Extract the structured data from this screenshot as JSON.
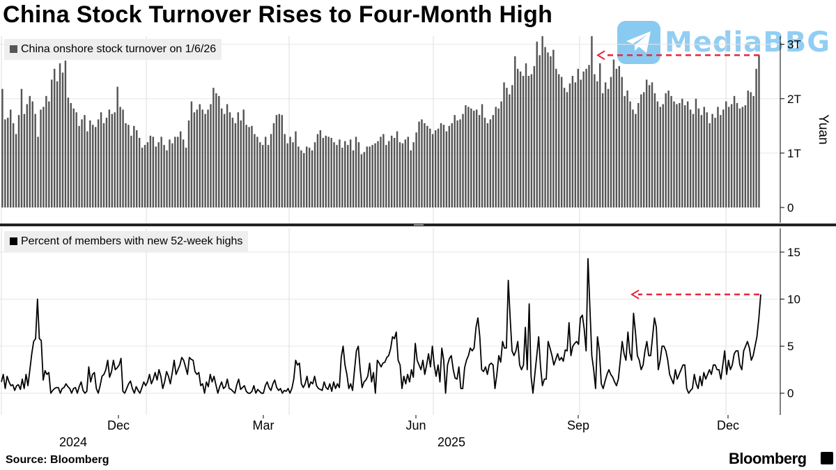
{
  "title": "China Stock Turnover Rises to Four-Month High",
  "watermark": {
    "text": "MediaBBG",
    "icon": "telegram-icon",
    "color": "#2aa0e6"
  },
  "source": "Source: Bloomberg",
  "brand": "Bloomberg",
  "x_axis": {
    "months": [
      "Dec",
      "Mar",
      "Jun",
      "Sep",
      "Dec"
    ],
    "years": [
      "2024",
      "2025"
    ]
  },
  "chart_data": [
    {
      "type": "bar",
      "legend": "China onshore stock turnover on 1/6/26",
      "ylabel": "Yuan",
      "ylim": [
        0,
        3.2
      ],
      "yticks": [
        0,
        1,
        2,
        3
      ],
      "ytick_labels": [
        "0",
        "1T",
        "2T",
        "3T"
      ],
      "bar_color": "#555555",
      "values": [
        2.18,
        1.62,
        1.65,
        1.8,
        1.55,
        1.35,
        1.7,
        2.18,
        1.72,
        1.9,
        2.05,
        1.95,
        1.72,
        1.3,
        1.8,
        1.85,
        2.05,
        1.95,
        2.35,
        2.55,
        2.32,
        2.65,
        2.48,
        2.7,
        2.02,
        1.92,
        1.82,
        1.75,
        1.5,
        1.62,
        1.7,
        1.4,
        1.6,
        1.52,
        1.48,
        1.62,
        1.75,
        1.55,
        1.65,
        1.8,
        1.72,
        1.75,
        2.22,
        1.85,
        1.8,
        1.55,
        1.52,
        1.32,
        1.5,
        1.42,
        1.28,
        1.1,
        1.15,
        1.2,
        1.32,
        1.3,
        1.12,
        1.2,
        1.3,
        1.15,
        1.05,
        1.25,
        1.18,
        1.3,
        1.3,
        1.4,
        1.25,
        1.1,
        1.6,
        1.95,
        1.75,
        1.8,
        1.9,
        1.8,
        1.72,
        1.8,
        1.9,
        2.2,
        2.1,
        2.05,
        1.82,
        1.72,
        1.9,
        1.75,
        1.65,
        1.55,
        1.75,
        1.6,
        1.8,
        1.52,
        1.48,
        1.5,
        1.35,
        1.3,
        1.2,
        1.15,
        1.3,
        1.15,
        1.35,
        1.55,
        1.7,
        1.72,
        1.7,
        1.35,
        1.18,
        1.3,
        1.2,
        1.4,
        1.12,
        1.05,
        1.0,
        1.12,
        1.1,
        1.05,
        1.2,
        1.35,
        1.42,
        1.28,
        1.32,
        1.3,
        1.28,
        1.2,
        1.15,
        1.25,
        1.1,
        1.22,
        1.15,
        1.25,
        1.05,
        1.3,
        1.2,
        0.98,
        1.02,
        1.12,
        1.12,
        1.15,
        1.18,
        1.22,
        1.3,
        1.35,
        1.15,
        1.22,
        1.32,
        1.28,
        1.4,
        1.2,
        1.18,
        1.25,
        1.3,
        1.05,
        1.2,
        1.38,
        1.58,
        1.62,
        1.55,
        1.5,
        1.45,
        1.35,
        1.42,
        1.45,
        1.55,
        1.52,
        1.4,
        1.5,
        1.55,
        1.7,
        1.6,
        1.62,
        1.72,
        1.88,
        1.85,
        1.82,
        1.78,
        1.8,
        1.7,
        1.9,
        1.65,
        1.55,
        1.62,
        1.7,
        1.85,
        1.82,
        1.95,
        2.3,
        2.2,
        2.08,
        2.25,
        2.78,
        2.55,
        2.5,
        2.42,
        2.65,
        2.42,
        2.45,
        2.6,
        3.05,
        2.8,
        3.15,
        2.95,
        2.85,
        2.78,
        2.9,
        2.55,
        2.45,
        2.4,
        2.2,
        2.12,
        2.28,
        2.42,
        2.3,
        2.55,
        2.35,
        2.5,
        2.55,
        2.62,
        3.15,
        2.45,
        2.32,
        2.65,
        2.1,
        2.3,
        2.18,
        2.4,
        2.72,
        2.55,
        2.6,
        2.4,
        2.05,
        2.15,
        1.95,
        1.8,
        1.72,
        1.92,
        2.08,
        2.12,
        2.35,
        2.25,
        2.3,
        2.1,
        1.95,
        1.85,
        1.9,
        2.1,
        2.15,
        2.05,
        1.95,
        1.9,
        1.92,
        2.0,
        1.88,
        1.95,
        1.8,
        1.72,
        2.0,
        1.82,
        1.7,
        1.85,
        1.75,
        1.55,
        1.72,
        1.65,
        1.85,
        1.7,
        1.8,
        1.95,
        1.85,
        1.9,
        2.05,
        1.92,
        1.82,
        1.85,
        1.88,
        2.15,
        2.12,
        2.05,
        2.55,
        2.8
      ],
      "annotation": {
        "from_value": 2.8,
        "style": "dashed-arrow",
        "color": "#e8253a"
      }
    },
    {
      "type": "line",
      "legend": "Percent of members with new 52-week highs",
      "ylim": [
        -1.5,
        17
      ],
      "yticks": [
        0,
        5,
        10,
        15
      ],
      "ytick_labels": [
        "0",
        "5",
        "10",
        "15"
      ],
      "line_color": "#000000",
      "values": [
        1.2,
        2.0,
        0.5,
        1.8,
        1.2,
        0.8,
        0.9,
        0.3,
        0.8,
        0.9,
        0.4,
        1.5,
        0.5,
        2.0,
        0.8,
        2.5,
        4.2,
        5.5,
        5.8,
        10.0,
        5.8,
        5.6,
        1.4,
        2.4,
        2.0,
        2.2,
        0.0,
        0.3,
        0.5,
        0.6,
        0.6,
        0.0,
        0.5,
        0.6,
        1.0,
        0.7,
        0.5,
        0.0,
        0.5,
        0.6,
        0.0,
        0.7,
        1.2,
        0.3,
        0.0,
        0.2,
        2.8,
        1.2,
        2.0,
        2.2,
        0.5,
        0.0,
        0.8,
        1.8,
        2.0,
        2.5,
        3.5,
        1.7,
        2.3,
        3.5,
        2.5,
        2.7,
        3.0,
        3.7,
        0.2,
        0.0,
        0.5,
        1.0,
        1.3,
        0.5,
        0.0,
        0.7,
        0.3,
        0.0,
        0.6,
        1.2,
        0.8,
        1.2,
        2.0,
        1.0,
        1.5,
        2.2,
        1.4,
        2.5,
        1.8,
        0.5,
        1.2,
        2.3,
        1.8,
        1.0,
        2.2,
        3.5,
        2.0,
        2.5,
        3.0,
        3.8,
        3.5,
        2.8,
        2.0,
        3.8,
        3.6,
        3.5,
        2.3,
        2.0,
        2.2,
        0.8,
        1.0,
        0.0,
        1.2,
        0.7,
        2.0,
        1.2,
        1.8,
        0.9,
        0.0,
        0.7,
        1.2,
        0.5,
        0.7,
        1.5,
        0.5,
        0.4,
        0.2,
        0.0,
        0.9,
        1.5,
        0.4,
        0.6,
        0.8,
        0.2,
        0.0,
        0.0,
        0.2,
        0.8,
        0.0,
        0.4,
        0.2,
        0.0,
        0.0,
        0.8,
        1.2,
        0.6,
        0.3,
        1.0,
        1.4,
        0.6,
        0.3,
        0.5,
        0.0,
        0.3,
        0.2,
        0.5,
        0.0,
        0.5,
        1.5,
        3.5,
        3.0,
        3.2,
        1.0,
        0.6,
        1.0,
        1.8,
        0.6,
        1.2,
        1.0,
        1.8,
        0.8,
        0.5,
        0.4,
        0.3,
        1.2,
        0.6,
        0.4,
        1.0,
        0.2,
        1.2,
        0.5,
        1.0,
        0.6,
        3.8,
        5.0,
        3.0,
        2.0,
        0.5,
        1.0,
        0.3,
        2.5,
        4.5,
        5.0,
        2.5,
        0.6,
        1.2,
        1.4,
        1.8,
        3.2,
        1.2,
        2.2,
        0.0,
        3.5,
        3.2,
        2.8,
        3.2,
        3.3,
        3.8,
        4.0,
        4.7,
        6.0,
        5.8,
        6.5,
        3.5,
        3.0,
        0.5,
        1.8,
        1.0,
        2.0,
        1.2,
        2.5,
        1.7,
        5.3,
        3.5,
        3.0,
        2.5,
        3.5,
        2.0,
        3.0,
        4.2,
        2.8,
        5.0,
        3.0,
        1.8,
        3.0,
        1.2,
        4.8,
        3.5,
        0.0,
        3.0,
        3.7,
        4.0,
        2.5,
        1.6,
        1.5,
        2.8,
        0.5,
        0.5,
        2.7,
        3.5,
        4.0,
        4.8,
        4.5,
        4.8,
        7.0,
        8.0,
        6.0,
        2.5,
        2.3,
        2.8,
        2.0,
        3.0,
        3.2,
        3.0,
        0.5,
        2.0,
        4.0,
        3.3,
        5.5,
        4.8,
        4.8,
        12.0,
        8.0,
        4.5,
        4.0,
        4.5,
        5.5,
        3.0,
        2.5,
        3.0,
        7.0,
        2.5,
        9.5,
        1.8,
        0.0,
        2.0,
        4.0,
        6.0,
        2.8,
        0.8,
        1.5,
        1.5,
        5.5,
        4.8,
        4.0,
        3.0,
        3.6,
        4.2,
        3.5,
        3.8,
        3.4,
        4.6,
        4.5,
        7.5,
        4.0,
        5.0,
        5.3,
        5.5,
        5.2,
        8.0,
        8.3,
        6.8,
        4.5,
        14.3,
        9.0,
        4.0,
        2.5,
        0.5,
        6.0,
        4.5,
        1.0,
        0.5,
        1.3,
        2.0,
        2.5,
        2.0,
        1.7,
        1.2,
        0.8,
        1.5,
        3.5,
        5.5,
        4.2,
        3.5,
        6.5,
        4.3,
        3.5,
        8.5,
        6.5,
        4.0,
        3.5,
        2.5,
        3.0,
        4.5,
        5.5,
        4.0,
        4.0,
        6.0,
        8.0,
        7.0,
        2.5,
        3.5,
        5.0,
        5.0,
        4.5,
        3.5,
        2.0,
        1.5,
        1.0,
        2.5,
        1.5,
        2.0,
        2.5,
        3.0,
        3.0,
        0.5,
        0.0,
        0.3,
        0.5,
        2.0,
        1.0,
        0.5,
        1.8,
        0.8,
        2.2,
        1.5,
        2.0,
        2.5,
        2.0,
        3.0,
        3.0,
        2.5,
        2.5,
        1.5,
        3.0,
        4.5,
        2.0,
        3.5,
        2.5,
        3.0,
        4.2,
        4.5,
        4.5,
        3.0,
        2.5,
        4.5,
        5.0,
        5.5,
        4.8,
        3.5,
        4.0,
        5.0,
        6.0,
        8.0,
        10.5
      ]
    }
  ]
}
